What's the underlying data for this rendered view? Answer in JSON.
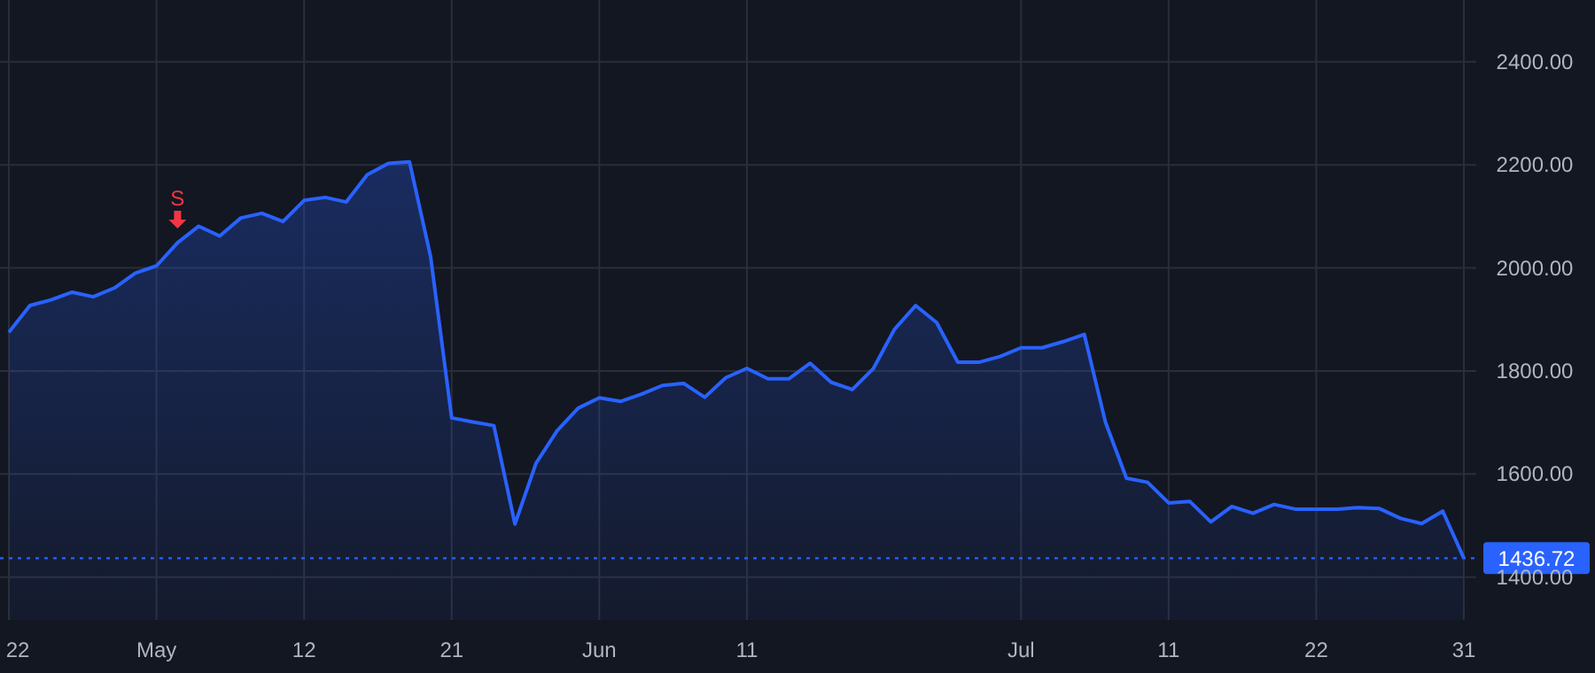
{
  "chart_data": {
    "type": "area",
    "categories": [
      "22",
      null,
      null,
      null,
      null,
      null,
      null,
      "May",
      null,
      null,
      null,
      null,
      null,
      null,
      "12",
      null,
      null,
      null,
      null,
      null,
      null,
      "21",
      null,
      null,
      null,
      null,
      null,
      null,
      "Jun",
      null,
      null,
      null,
      null,
      null,
      null,
      "11",
      null,
      null,
      null,
      null,
      null,
      null,
      null,
      null,
      null,
      null,
      null,
      null,
      "Jul",
      null,
      null,
      null,
      null,
      null,
      null,
      "11",
      null,
      null,
      null,
      null,
      null,
      null,
      "22",
      null,
      null,
      null,
      null,
      null,
      null,
      "31"
    ],
    "series": [
      {
        "color": "#2962ff",
        "values": [
          1875,
          1927,
          1938,
          1953,
          1944,
          1961,
          1990,
          2004,
          2049,
          2081,
          2062,
          2097,
          2106,
          2090,
          2131,
          2137,
          2128,
          2181,
          2203,
          2206,
          2022,
          1709,
          1701,
          1694,
          1503,
          1621,
          1684,
          1728,
          1748,
          1741,
          1755,
          1772,
          1776,
          1749,
          1787,
          1805,
          1785,
          1785,
          1815,
          1778,
          1764,
          1805,
          1881,
          1927,
          1894,
          1817,
          1817,
          1828,
          1845,
          1845,
          1857,
          1871,
          1701,
          1592,
          1584,
          1544,
          1547,
          1507,
          1537,
          1524,
          1541,
          1532,
          1532,
          1532,
          1535,
          1533,
          1514,
          1504,
          1528,
          1436.72
        ]
      }
    ],
    "ylim": [
      1317,
      2520
    ],
    "yticks": [
      {
        "value": 1400,
        "label": "1400.00"
      },
      {
        "value": 1600,
        "label": "1600.00"
      },
      {
        "value": 1800,
        "label": "1800.00"
      },
      {
        "value": 2000,
        "label": "2000.00"
      },
      {
        "value": 2200,
        "label": "2200.00"
      },
      {
        "value": 2400,
        "label": "2400.00"
      }
    ],
    "grid": true,
    "ref_lines": [
      {
        "axis": "y",
        "value": 1436.72,
        "label": "1436.72",
        "color": "#2962ff",
        "line_style": "dotted"
      }
    ],
    "annotations": [
      {
        "text": "S",
        "y": 2049
      }
    ]
  }
}
